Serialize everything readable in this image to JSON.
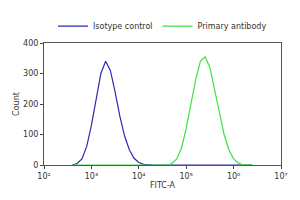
{
  "chart_data": {
    "type": "line",
    "x_label": "FITC-A",
    "y_label": "Count",
    "log": "x",
    "grid": false,
    "legend": "top",
    "xlim": [
      100,
      10000000
    ],
    "xticks": [
      {
        "value": 100,
        "label": "10²"
      },
      {
        "value": 1000,
        "label": "10³"
      },
      {
        "value": 10000,
        "label": "10⁴"
      },
      {
        "value": 100000,
        "label": "10⁵"
      },
      {
        "value": 1000000,
        "label": "10⁶"
      },
      {
        "value": 10000000,
        "label": "10⁷"
      }
    ],
    "ylim": [
      0,
      400
    ],
    "yticks": [
      0,
      100,
      200,
      300,
      400
    ],
    "x": [
      398,
      501,
      631,
      794,
      1000,
      1259,
      1585,
      1995,
      2512,
      3162,
      3981,
      5012,
      6310,
      7943,
      10000,
      12589,
      15849,
      19953,
      25119,
      31623,
      39811,
      50119,
      63096,
      79433,
      100000,
      125893,
      158489,
      199526,
      251189,
      316228,
      398107,
      501187,
      630957,
      794328,
      1000000,
      1258925,
      1584893,
      1995262,
      2511886
    ],
    "series": [
      {
        "name": "Isotype control",
        "color": "#2b2bb0",
        "values": [
          0,
          5,
          20,
          60,
          130,
          220,
          300,
          340,
          310,
          240,
          160,
          95,
          50,
          22,
          8,
          2,
          0,
          0,
          0,
          0,
          0,
          0,
          0,
          0,
          0,
          0,
          0,
          0,
          0,
          0,
          0,
          0,
          0,
          0,
          0,
          0,
          0,
          0,
          0
        ]
      },
      {
        "name": "Primary antibody",
        "color": "#3ee03e",
        "values": [
          0,
          0,
          0,
          0,
          0,
          0,
          0,
          0,
          0,
          0,
          0,
          0,
          0,
          0,
          0,
          0,
          0,
          0,
          0,
          0,
          0,
          5,
          20,
          55,
          120,
          200,
          280,
          340,
          355,
          320,
          250,
          170,
          100,
          50,
          20,
          6,
          1,
          0,
          0
        ]
      }
    ]
  }
}
